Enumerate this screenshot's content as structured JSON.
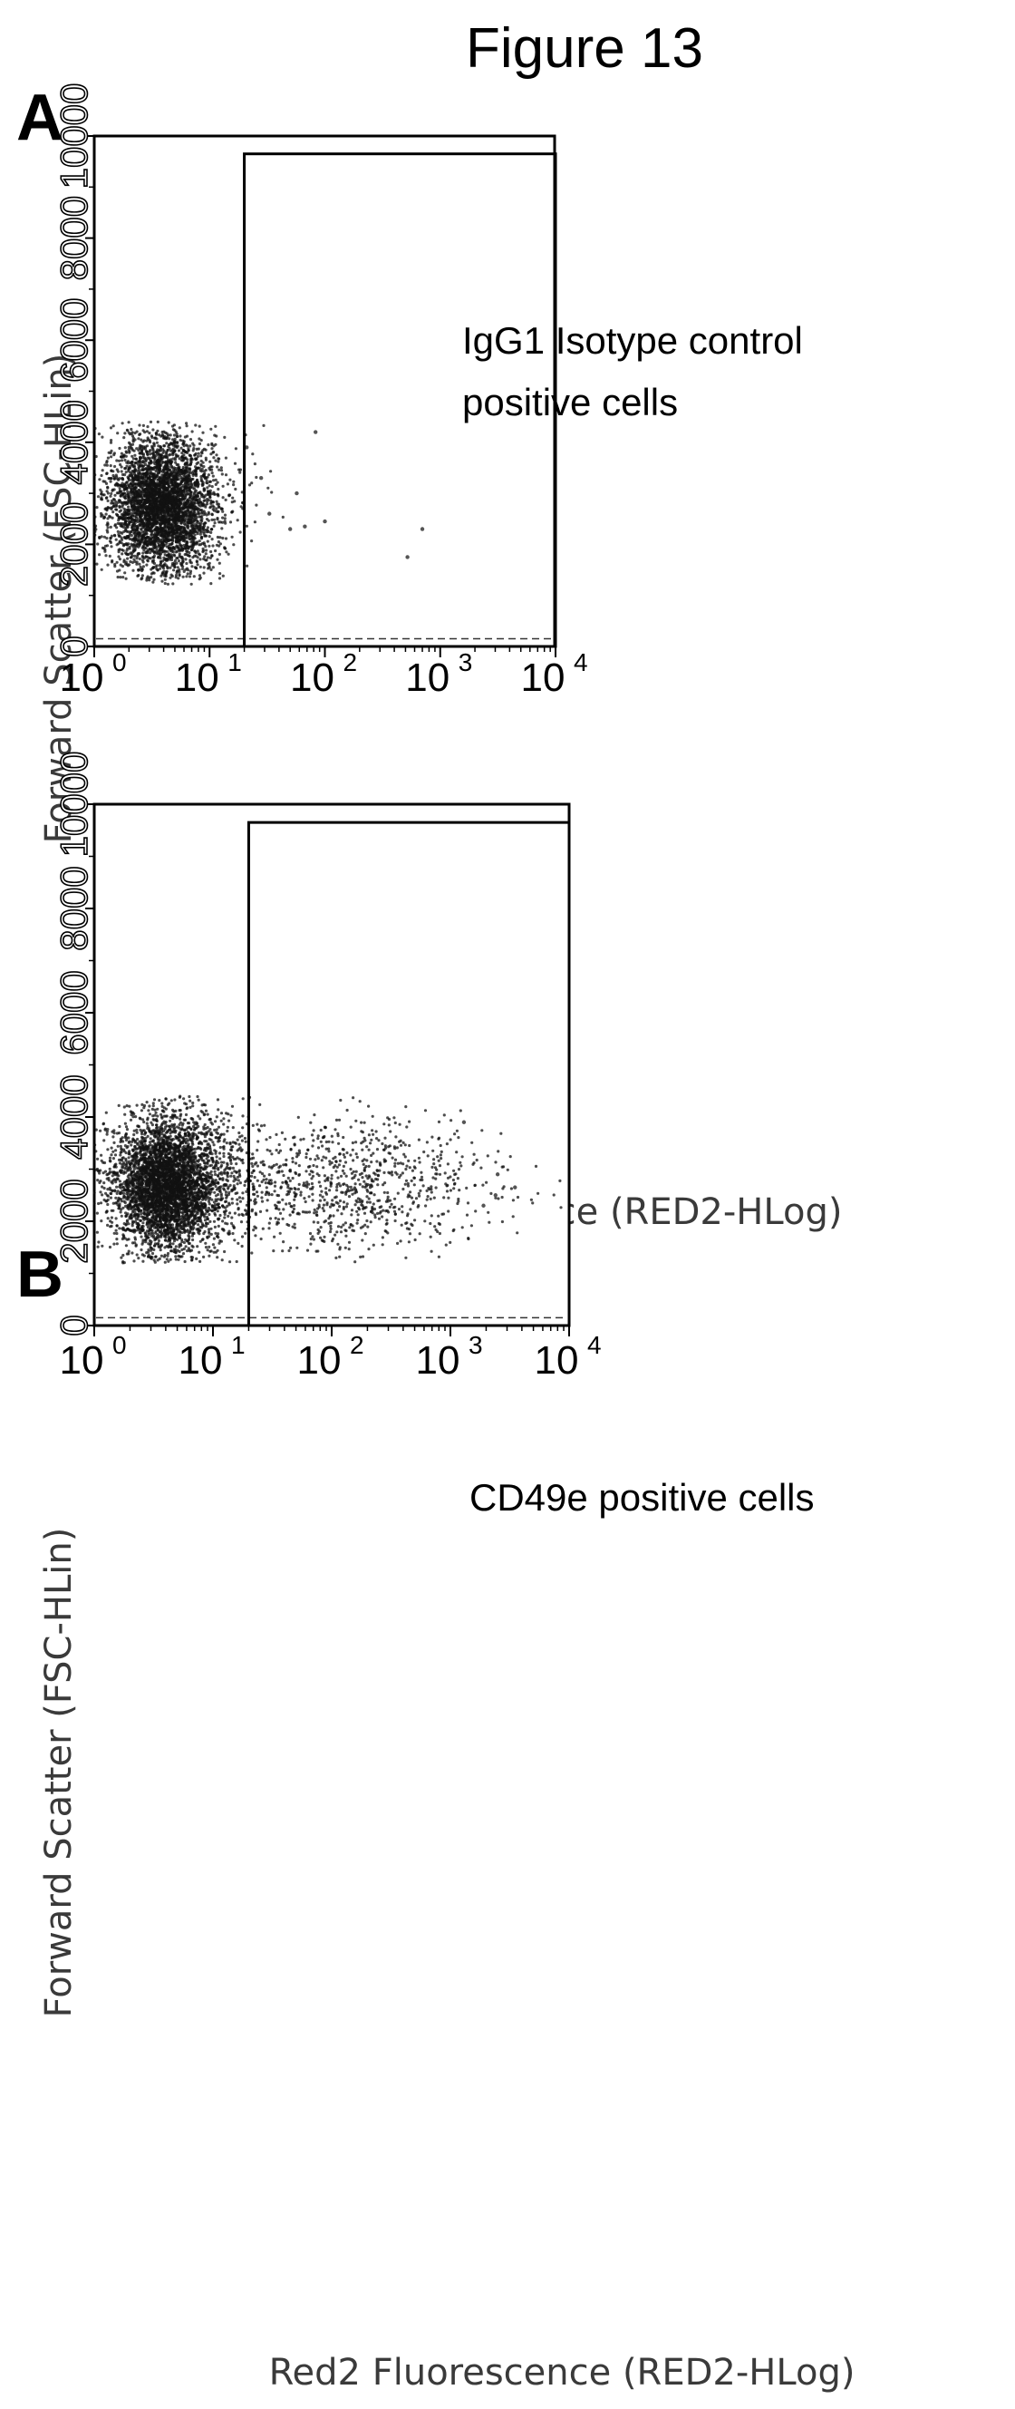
{
  "figure_title": "Figure 13",
  "panels": [
    {
      "letter": "A",
      "gate_label_lines": [
        "IgG1 Isotype control",
        "positive cells"
      ]
    },
    {
      "letter": "B",
      "gate_label_lines": [
        "CD49e positive cells"
      ]
    }
  ],
  "chart_data": [
    {
      "type": "scatter",
      "panel": "A",
      "xlabel": "Red2 Fluorescence (RED2-HLog)",
      "ylabel": "Forward Scatter (FSC-HLin)",
      "x_scale": "log",
      "xlim": [
        1,
        10000
      ],
      "ylim": [
        0,
        10000
      ],
      "x_ticks": [
        {
          "base": "10",
          "exp": "0"
        },
        {
          "base": "10",
          "exp": "1"
        },
        {
          "base": "10",
          "exp": "2"
        },
        {
          "base": "10",
          "exp": "3"
        },
        {
          "base": "10",
          "exp": "4"
        }
      ],
      "y_ticks": [
        "0",
        "2000",
        "4000",
        "6000",
        "8000",
        "10000"
      ],
      "gate": {
        "x_min": 20,
        "x_max": 10000,
        "y_min": 0,
        "y_max": 9650
      },
      "dashed_threshold_y": 150,
      "populations": [
        {
          "name": "",
          "x_median": 3.8,
          "x_log_sd": 0.22,
          "y_mean": 2800,
          "y_sd": 620,
          "count": 3200
        },
        {
          "name": "",
          "x_median": 4.5,
          "x_log_sd": 0.3,
          "y_mean": 2700,
          "y_sd": 800,
          "count": 900
        }
      ],
      "points": [
        {
          "x": 21,
          "y": 3900
        },
        {
          "x": 28,
          "y": 3300
        },
        {
          "x": 33,
          "y": 2600
        },
        {
          "x": 50,
          "y": 2300
        },
        {
          "x": 57,
          "y": 3000
        },
        {
          "x": 67,
          "y": 2350
        },
        {
          "x": 83,
          "y": 4200
        },
        {
          "x": 100,
          "y": 2450
        },
        {
          "x": 520,
          "y": 1750
        },
        {
          "x": 700,
          "y": 2300
        }
      ]
    },
    {
      "type": "scatter",
      "panel": "B",
      "xlabel": "Red2 Fluorescence (RED2-HLog)",
      "ylabel": "Forward Scatter (FSC-HLin)",
      "x_scale": "log",
      "xlim": [
        1,
        10000
      ],
      "ylim": [
        0,
        10000
      ],
      "x_ticks": [
        {
          "base": "10",
          "exp": "0"
        },
        {
          "base": "10",
          "exp": "1"
        },
        {
          "base": "10",
          "exp": "2"
        },
        {
          "base": "10",
          "exp": "3"
        },
        {
          "base": "10",
          "exp": "4"
        }
      ],
      "y_ticks": [
        "0",
        "2000",
        "4000",
        "6000",
        "8000",
        "10000"
      ],
      "gate": {
        "x_min": 20,
        "x_max": 10000,
        "y_min": 0,
        "y_max": 9650
      },
      "dashed_threshold_y": 150,
      "populations": [
        {
          "name": "",
          "x_median": 4.0,
          "x_log_sd": 0.22,
          "y_mean": 2700,
          "y_sd": 620,
          "count": 3400
        },
        {
          "name": "",
          "x_median": 5.0,
          "x_log_sd": 0.32,
          "y_mean": 2700,
          "y_sd": 780,
          "count": 1000
        },
        {
          "name": "",
          "x_median": 120,
          "x_log_sd": 0.62,
          "y_mean": 2700,
          "y_sd": 650,
          "count": 1000
        }
      ],
      "points": [
        {
          "x": 3500,
          "y": 2650
        },
        {
          "x": 2500,
          "y": 2900
        },
        {
          "x": 1300,
          "y": 3900
        },
        {
          "x": 1900,
          "y": 2300
        },
        {
          "x": 2400,
          "y": 2500
        }
      ]
    }
  ]
}
